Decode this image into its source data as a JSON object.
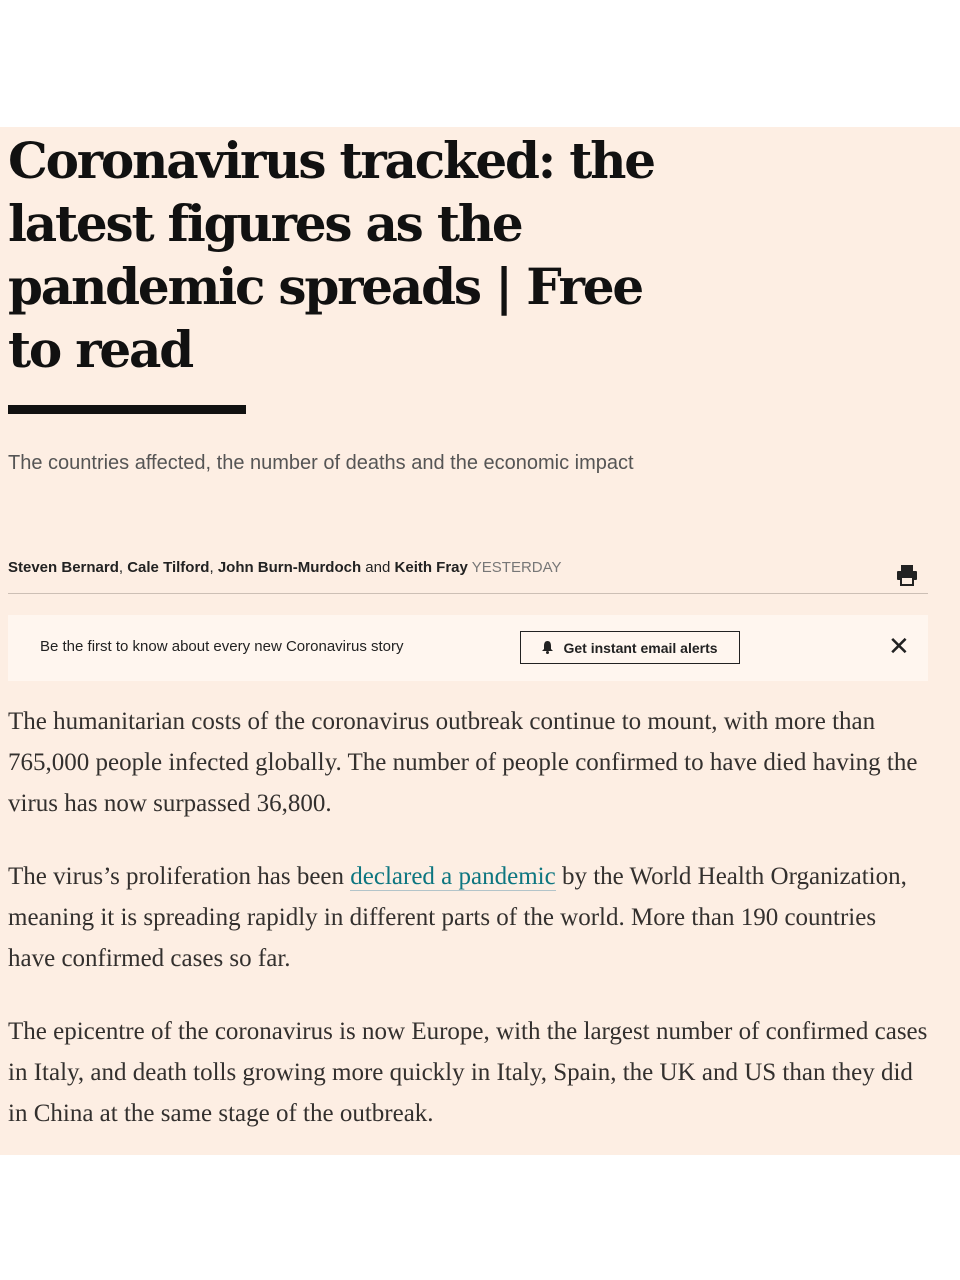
{
  "article": {
    "headline": "Coronavirus tracked: the latest figures as the pandemic spreads | Free to read",
    "standfirst": "The countries affected, the number of deaths and the economic impact",
    "byline": {
      "authors": [
        "Steven Bernard",
        "Cale Tilford",
        "John Burn-Murdoch",
        "Keith Fray"
      ],
      "sep1": ", ",
      "sep2": ", ",
      "and": " and ",
      "time": "Yesterday"
    },
    "print_icon": "printer-icon"
  },
  "banner": {
    "text": "Be the first to know about every new Coronavirus story",
    "button_label": "Get instant email alerts",
    "button_icon": "bell-icon",
    "close_label": "✕"
  },
  "body": {
    "p1": "The humanitarian costs of the coronavirus outbreak continue to mount, with more than 765,000 people infected globally. The number of people confirmed to have died having the virus has now surpassed 36,800.",
    "p2_before": "The virus’s proliferation has been ",
    "p2_link": "declared a pandemic",
    "p2_after": " by the World Health Organization, meaning it is spreading rapidly in different parts of the world. More than 190 countries have confirmed cases so far.",
    "p3": "The epicentre of the coronavirus is now Europe, with the largest number of confirmed cases in Italy, and death tolls growing more quickly in Italy, Spain, the UK and US than they did in China at the same stage of the outbreak."
  },
  "colors": {
    "background": "#fdeee3",
    "link": "#0d7680"
  }
}
